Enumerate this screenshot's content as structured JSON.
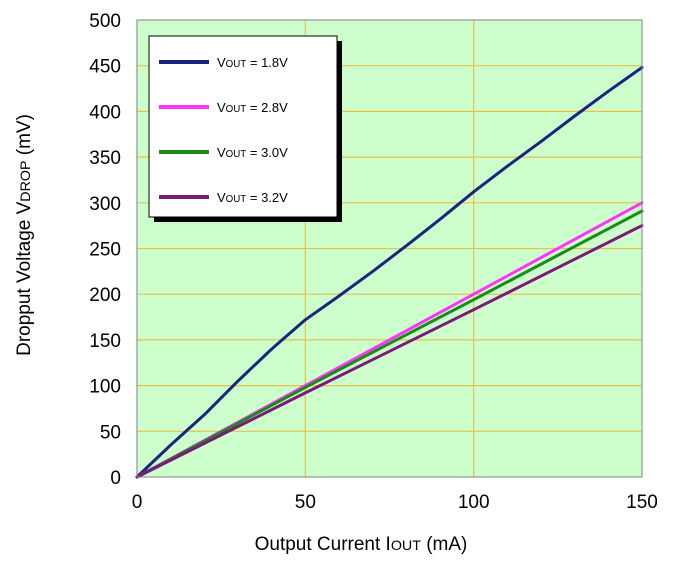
{
  "chart_data": {
    "type": "line",
    "xlabel": {
      "main": "Output Current I",
      "sub": "OUT",
      "unit": " (mA)"
    },
    "ylabel": {
      "main": "Dropput Voltage V",
      "sub": "DROP",
      "unit": " (mV)"
    },
    "xlim": [
      0,
      150
    ],
    "ylim": [
      0,
      500
    ],
    "xticks": [
      "0",
      "50",
      "100",
      "150"
    ],
    "yticks": [
      "0",
      "50",
      "100",
      "150",
      "200",
      "250",
      "300",
      "350",
      "400",
      "450",
      "500"
    ],
    "grid": true,
    "legend_position": "top-left",
    "colors": {
      "plot_background": "#ccffcc",
      "grid": "#e8c04a"
    },
    "series": [
      {
        "legend_main": "V",
        "legend_sub": "OUT",
        "legend_value": " = 1.8V",
        "color": "#1a237e",
        "x": [
          0,
          10,
          20,
          30,
          40,
          50,
          60,
          70,
          80,
          90,
          100,
          110,
          120,
          130,
          140,
          150
        ],
        "y": [
          0,
          35,
          68,
          105,
          140,
          172,
          198,
          225,
          253,
          282,
          312,
          340,
          367,
          395,
          422,
          448
        ]
      },
      {
        "legend_main": "V",
        "legend_sub": "OUT",
        "legend_value": " = 2.8V",
        "color": "#ff33ff",
        "x": [
          0,
          50,
          100,
          150
        ],
        "y": [
          0,
          100,
          200,
          300
        ]
      },
      {
        "legend_main": "V",
        "legend_sub": "OUT",
        "legend_value": " = 3.0V",
        "color": "#1a8a1a",
        "x": [
          0,
          50,
          100,
          150
        ],
        "y": [
          0,
          98,
          194,
          291
        ]
      },
      {
        "legend_main": "V",
        "legend_sub": "OUT",
        "legend_value": " = 3.2V",
        "color": "#7b1a7b",
        "x": [
          0,
          50,
          100,
          150
        ],
        "y": [
          0,
          92,
          183,
          275
        ]
      }
    ]
  }
}
